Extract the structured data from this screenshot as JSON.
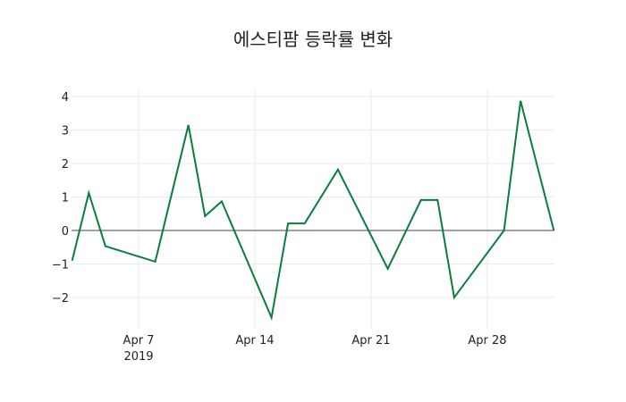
{
  "chart_data": {
    "type": "line",
    "title": "에스티팜 등락률 변화",
    "xlabel": "",
    "ylabel": "",
    "x": [
      "2019-04-03",
      "2019-04-04",
      "2019-04-05",
      "2019-04-08",
      "2019-04-10",
      "2019-04-11",
      "2019-04-12",
      "2019-04-15",
      "2019-04-16",
      "2019-04-17",
      "2019-04-19",
      "2019-04-22",
      "2019-04-24",
      "2019-04-25",
      "2019-04-26",
      "2019-04-29",
      "2019-04-30",
      "2019-05-02"
    ],
    "series": [
      {
        "name": "등락률",
        "color": "#0a7d3e",
        "values": [
          -0.9,
          1.12,
          -0.47,
          -0.93,
          3.15,
          0.43,
          0.87,
          -2.6,
          0.21,
          0.21,
          1.82,
          -1.14,
          0.91,
          0.91,
          -2.0,
          0.0,
          3.87,
          0.0
        ]
      }
    ],
    "ylim": [
      -2.95,
      4.25
    ],
    "yticks": [
      4,
      3,
      2,
      1,
      0,
      -1,
      -2
    ],
    "ytick_labels": [
      "4",
      "3",
      "2",
      "1",
      "0",
      "−1",
      "−2"
    ],
    "xticks": [
      {
        "date": "2019-04-07",
        "label": "Apr 7",
        "sublabel": "2019"
      },
      {
        "date": "2019-04-14",
        "label": "Apr 14",
        "sublabel": ""
      },
      {
        "date": "2019-04-21",
        "label": "Apr 21",
        "sublabel": ""
      },
      {
        "date": "2019-04-28",
        "label": "Apr 28",
        "sublabel": ""
      }
    ],
    "grid": true,
    "zeroline": true,
    "legend": "none"
  }
}
